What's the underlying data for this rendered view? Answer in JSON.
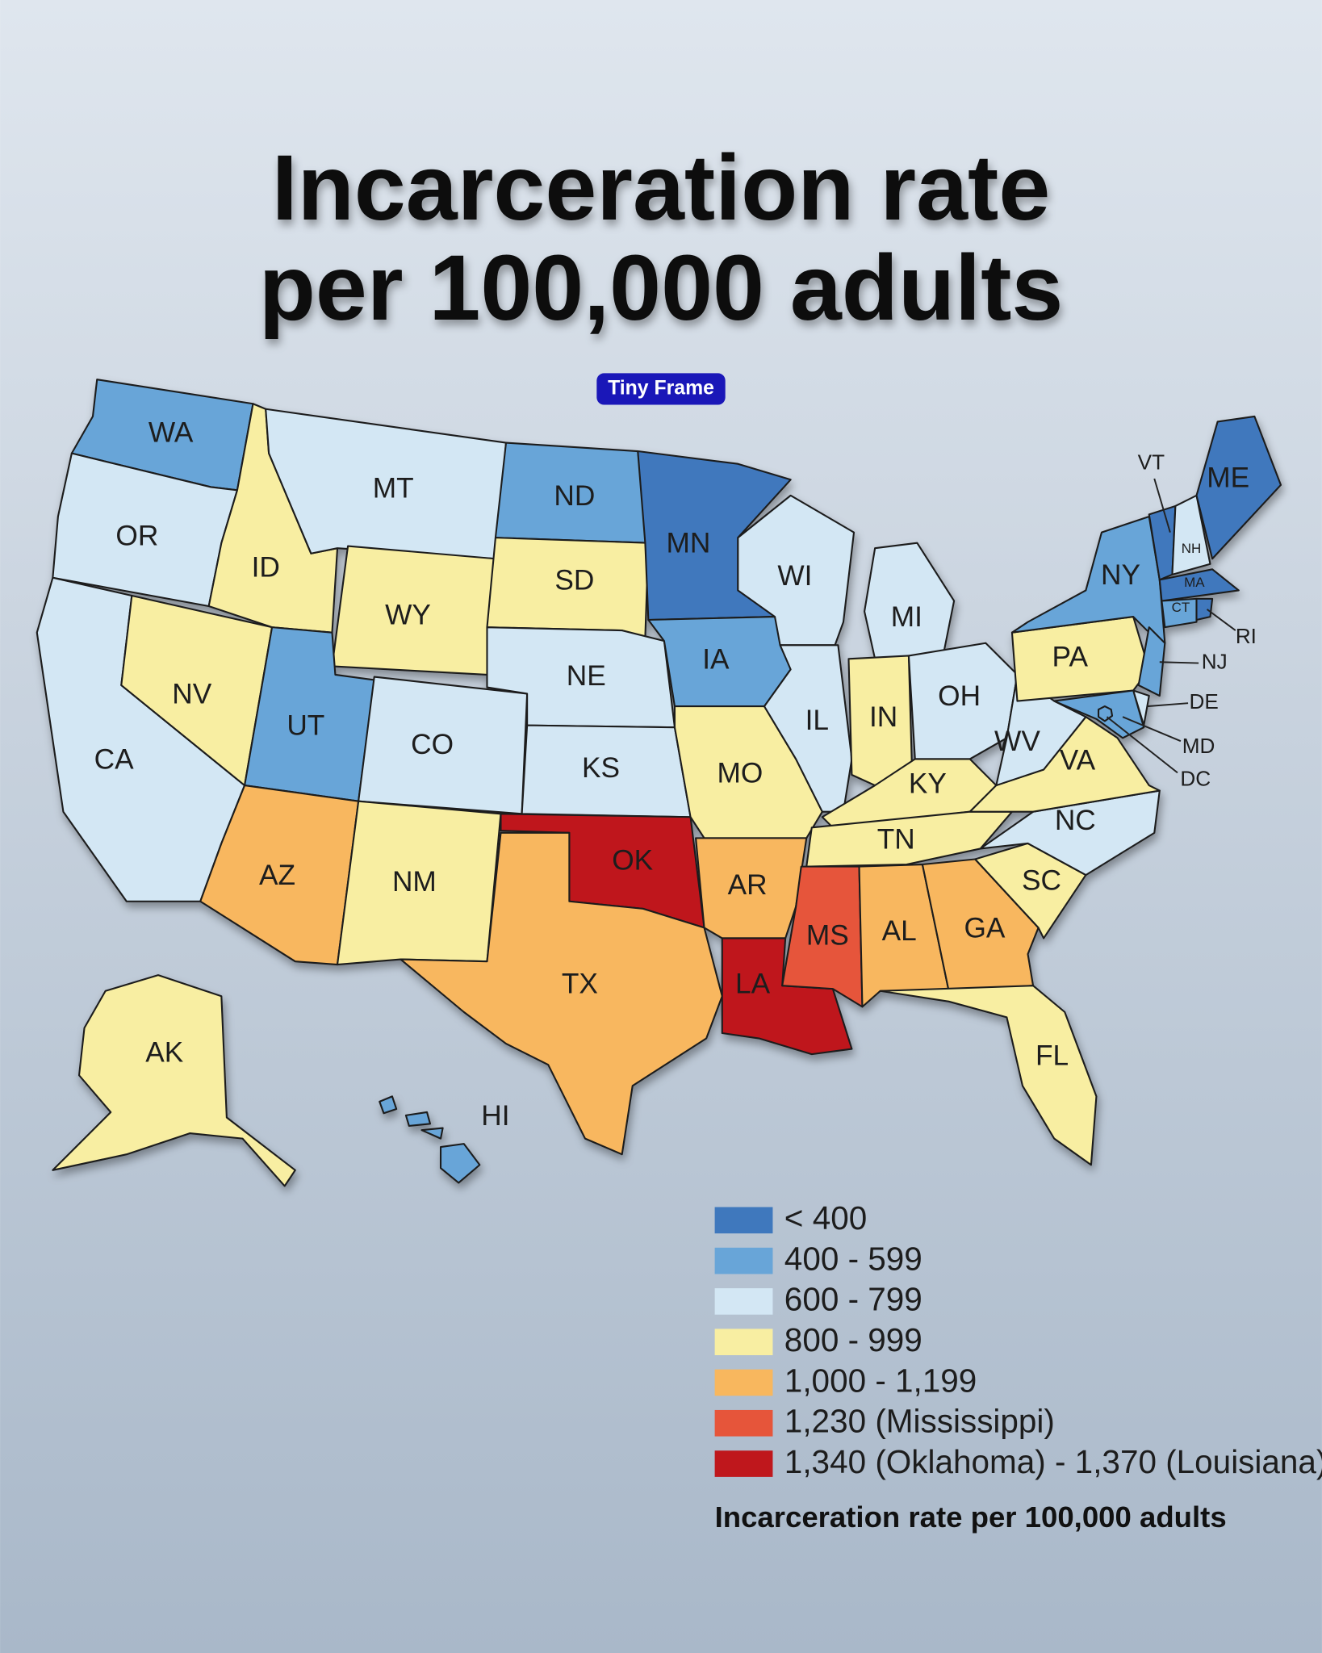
{
  "title_lines": [
    "Incarceration rate",
    "per 100,000 adults"
  ],
  "badge": "Tiny Frame",
  "legend": {
    "title": "Incarceration rate per 100,000 adults",
    "items": [
      {
        "label": "< 400",
        "color": "#3f78bd"
      },
      {
        "label": "400 - 599",
        "color": "#68a5d8"
      },
      {
        "label": "600 - 799",
        "color": "#d3e7f4"
      },
      {
        "label": "800 - 999",
        "color": "#f8eea2"
      },
      {
        "label": "1,000 - 1,199",
        "color": "#f8b75e"
      },
      {
        "label": "1,230 (Mississippi)",
        "color": "#e6553a"
      },
      {
        "label": "1,340 (Oklahoma) - 1,370 (Louisiana)",
        "color": "#bf171c"
      }
    ]
  },
  "states": [
    {
      "label": "WA",
      "color": "#68a5d8"
    },
    {
      "label": "OR",
      "color": "#d3e7f4"
    },
    {
      "label": "CA",
      "color": "#d3e7f4"
    },
    {
      "label": "NV",
      "color": "#f8eea2"
    },
    {
      "label": "ID",
      "color": "#f8eea2"
    },
    {
      "label": "MT",
      "color": "#d3e7f4"
    },
    {
      "label": "WY",
      "color": "#f8eea2"
    },
    {
      "label": "UT",
      "color": "#68a5d8"
    },
    {
      "label": "CO",
      "color": "#d3e7f4"
    },
    {
      "label": "AZ",
      "color": "#f8b75e"
    },
    {
      "label": "NM",
      "color": "#f8eea2"
    },
    {
      "label": "ND",
      "color": "#68a5d8"
    },
    {
      "label": "SD",
      "color": "#f8eea2"
    },
    {
      "label": "NE",
      "color": "#d3e7f4"
    },
    {
      "label": "KS",
      "color": "#d3e7f4"
    },
    {
      "label": "OK",
      "color": "#bf171c"
    },
    {
      "label": "TX",
      "color": "#f8b75e"
    },
    {
      "label": "MN",
      "color": "#3f78bd"
    },
    {
      "label": "IA",
      "color": "#68a5d8"
    },
    {
      "label": "MO",
      "color": "#f8eea2"
    },
    {
      "label": "AR",
      "color": "#f8b75e"
    },
    {
      "label": "LA",
      "color": "#bf171c"
    },
    {
      "label": "WI",
      "color": "#d3e7f4"
    },
    {
      "label": "IL",
      "color": "#d3e7f4"
    },
    {
      "label": "MI",
      "color": "#d3e7f4"
    },
    {
      "label": "IN",
      "color": "#f8eea2"
    },
    {
      "label": "OH",
      "color": "#d3e7f4"
    },
    {
      "label": "KY",
      "color": "#f8eea2"
    },
    {
      "label": "TN",
      "color": "#f8eea2"
    },
    {
      "label": "MS",
      "color": "#e6553a"
    },
    {
      "label": "AL",
      "color": "#f8b75e"
    },
    {
      "label": "GA",
      "color": "#f8b75e"
    },
    {
      "label": "FL",
      "color": "#f8eea2"
    },
    {
      "label": "SC",
      "color": "#f8eea2"
    },
    {
      "label": "NC",
      "color": "#d3e7f4"
    },
    {
      "label": "VA",
      "color": "#f8eea2"
    },
    {
      "label": "WV",
      "color": "#d3e7f4"
    },
    {
      "label": "PA",
      "color": "#f8eea2"
    },
    {
      "label": "NY",
      "color": "#68a5d8"
    },
    {
      "label": "NJ",
      "color": "#68a5d8"
    },
    {
      "label": "DE",
      "color": "#d3e7f4"
    },
    {
      "label": "MD",
      "color": "#68a5d8"
    },
    {
      "label": "DC",
      "color": "#68a5d8"
    },
    {
      "label": "VT",
      "color": "#3f78bd"
    },
    {
      "label": "NH",
      "color": "#d3e7f4"
    },
    {
      "label": "ME",
      "color": "#3f78bd"
    },
    {
      "label": "MA",
      "color": "#3f78bd"
    },
    {
      "label": "CT",
      "color": "#68a5d8"
    },
    {
      "label": "RI",
      "color": "#3f78bd"
    },
    {
      "label": "AK",
      "color": "#f8eea2"
    },
    {
      "label": "HI",
      "color": "#68a5d8"
    }
  ]
}
